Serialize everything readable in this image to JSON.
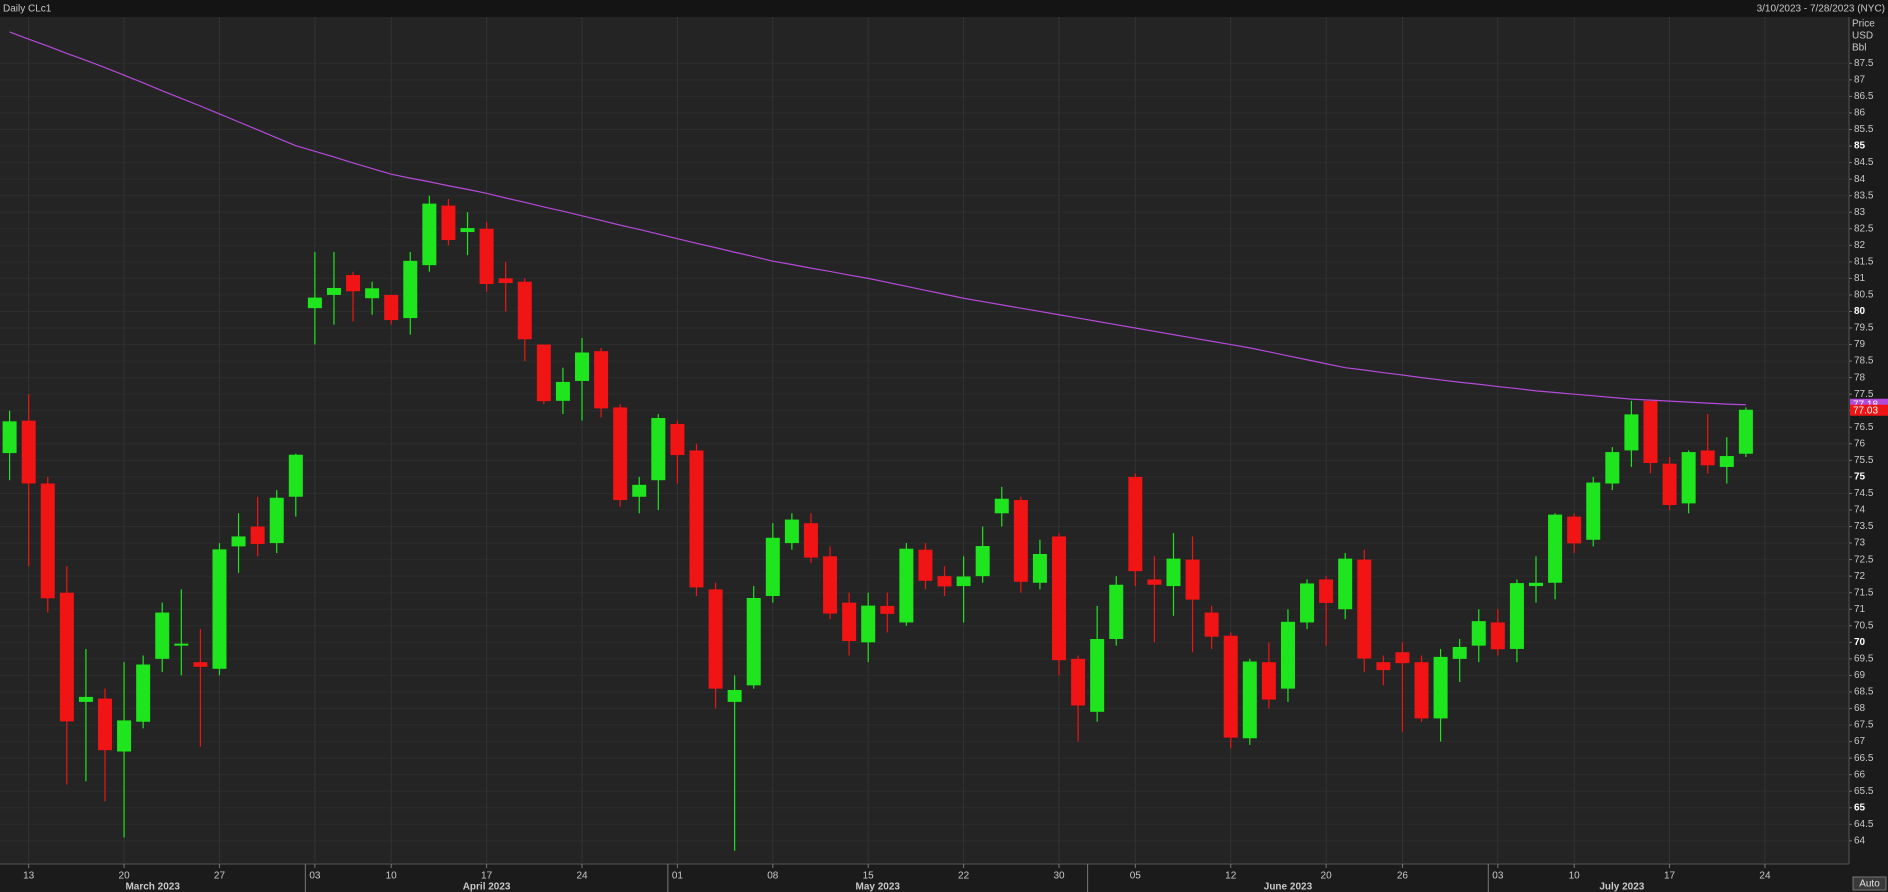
{
  "chart_data": {
    "type": "candlestick",
    "title": "Daily CLc1",
    "subtitle": "3/10/2023 - 7/28/2023 (NYC)",
    "y_axis_title": [
      "Price",
      "USD",
      "Bbl"
    ],
    "button": "Auto",
    "up_color": "#1fe51f",
    "down_color": "#f01414",
    "grid": true,
    "x": [
      "2023-03-10",
      "2023-03-13",
      "2023-03-14",
      "2023-03-15",
      "2023-03-16",
      "2023-03-17",
      "2023-03-20",
      "2023-03-21",
      "2023-03-22",
      "2023-03-23",
      "2023-03-24",
      "2023-03-27",
      "2023-03-28",
      "2023-03-29",
      "2023-03-30",
      "2023-03-31",
      "2023-04-03",
      "2023-04-04",
      "2023-04-05",
      "2023-04-06",
      "2023-04-10",
      "2023-04-11",
      "2023-04-12",
      "2023-04-13",
      "2023-04-14",
      "2023-04-17",
      "2023-04-18",
      "2023-04-19",
      "2023-04-20",
      "2023-04-21",
      "2023-04-24",
      "2023-04-25",
      "2023-04-26",
      "2023-04-27",
      "2023-04-28",
      "2023-05-01",
      "2023-05-02",
      "2023-05-03",
      "2023-05-04",
      "2023-05-05",
      "2023-05-08",
      "2023-05-09",
      "2023-05-10",
      "2023-05-11",
      "2023-05-12",
      "2023-05-15",
      "2023-05-16",
      "2023-05-17",
      "2023-05-18",
      "2023-05-19",
      "2023-05-22",
      "2023-05-23",
      "2023-05-24",
      "2023-05-25",
      "2023-05-26",
      "2023-05-30",
      "2023-05-31",
      "2023-06-01",
      "2023-06-02",
      "2023-06-05",
      "2023-06-06",
      "2023-06-07",
      "2023-06-08",
      "2023-06-09",
      "2023-06-12",
      "2023-06-13",
      "2023-06-14",
      "2023-06-15",
      "2023-06-16",
      "2023-06-20",
      "2023-06-21",
      "2023-06-22",
      "2023-06-23",
      "2023-06-26",
      "2023-06-27",
      "2023-06-28",
      "2023-06-29",
      "2023-06-30",
      "2023-07-03",
      "2023-07-05",
      "2023-07-06",
      "2023-07-07",
      "2023-07-10",
      "2023-07-11",
      "2023-07-12",
      "2023-07-13",
      "2023-07-14",
      "2023-07-17",
      "2023-07-18",
      "2023-07-19",
      "2023-07-20",
      "2023-07-21"
    ],
    "open": [
      75.72,
      76.7,
      74.8,
      71.5,
      68.2,
      68.3,
      66.7,
      67.6,
      69.5,
      69.9,
      69.4,
      69.2,
      72.9,
      73.5,
      73.0,
      74.4,
      80.1,
      80.5,
      81.1,
      80.4,
      80.5,
      79.8,
      81.4,
      83.2,
      82.4,
      82.5,
      81.0,
      80.9,
      79.0,
      77.3,
      77.9,
      78.8,
      77.1,
      74.4,
      74.9,
      76.6,
      75.8,
      71.6,
      68.2,
      68.7,
      71.4,
      73.0,
      73.6,
      72.6,
      71.2,
      70.0,
      71.1,
      70.6,
      72.8,
      72.0,
      71.7,
      72.0,
      73.9,
      74.3,
      71.8,
      73.2,
      69.5,
      67.9,
      70.1,
      75.0,
      71.9,
      71.7,
      72.5,
      70.9,
      70.2,
      67.1,
      69.4,
      68.6,
      70.6,
      71.9,
      71.0,
      72.5,
      69.4,
      69.7,
      69.4,
      67.7,
      69.5,
      69.9,
      70.6,
      69.8,
      71.7,
      71.8,
      73.8,
      73.1,
      74.8,
      75.8,
      77.3,
      75.4,
      74.2,
      75.8,
      75.3,
      75.7
    ],
    "high": [
      77.0,
      77.5,
      75.0,
      72.3,
      69.8,
      68.6,
      69.4,
      69.6,
      71.2,
      71.6,
      70.4,
      73.0,
      73.9,
      74.4,
      74.6,
      75.7,
      81.8,
      81.8,
      81.2,
      80.9,
      80.5,
      81.8,
      83.5,
      83.4,
      83.0,
      82.7,
      81.5,
      81.0,
      79.0,
      78.3,
      79.2,
      78.9,
      77.2,
      75.0,
      76.9,
      76.7,
      76.0,
      71.8,
      69.0,
      71.7,
      73.6,
      73.9,
      73.9,
      72.9,
      71.5,
      71.5,
      71.5,
      73.0,
      73.0,
      72.3,
      72.6,
      73.5,
      74.7,
      74.4,
      73.1,
      73.3,
      69.6,
      71.1,
      72.0,
      75.1,
      72.6,
      73.3,
      73.2,
      71.1,
      70.3,
      69.5,
      70.0,
      71.0,
      71.9,
      72.0,
      72.7,
      72.8,
      69.6,
      70.0,
      69.6,
      69.8,
      70.1,
      71.0,
      71.0,
      71.9,
      72.6,
      73.9,
      73.9,
      75.0,
      75.9,
      77.3,
      77.3,
      75.6,
      75.8,
      76.9,
      76.2,
      77.1
    ],
    "low": [
      74.9,
      72.3,
      70.9,
      65.7,
      65.8,
      65.2,
      64.1,
      67.4,
      69.1,
      69.0,
      66.85,
      69.0,
      72.1,
      72.6,
      72.7,
      73.8,
      79.0,
      79.6,
      79.7,
      79.9,
      79.6,
      79.3,
      81.2,
      82.0,
      81.7,
      80.6,
      80.0,
      78.5,
      77.2,
      76.9,
      76.7,
      76.8,
      74.1,
      73.9,
      74.0,
      74.8,
      71.4,
      68.0,
      63.7,
      68.6,
      71.2,
      72.8,
      72.4,
      70.7,
      69.6,
      69.4,
      70.3,
      70.5,
      71.6,
      71.4,
      70.6,
      71.8,
      73.5,
      71.5,
      71.6,
      69.0,
      67.0,
      67.6,
      69.9,
      71.7,
      70.0,
      70.8,
      69.7,
      69.8,
      66.8,
      66.9,
      68.0,
      68.2,
      70.4,
      69.9,
      70.7,
      69.1,
      68.7,
      67.3,
      67.6,
      67.0,
      68.8,
      69.4,
      69.6,
      69.4,
      71.2,
      71.3,
      72.7,
      72.9,
      74.6,
      75.3,
      75.1,
      74.0,
      73.9,
      75.1,
      74.8,
      75.6
    ],
    "close": [
      76.68,
      74.8,
      71.33,
      67.61,
      68.35,
      66.74,
      67.64,
      69.33,
      70.9,
      69.96,
      69.26,
      72.81,
      73.2,
      72.97,
      74.37,
      75.67,
      80.42,
      80.71,
      80.61,
      80.7,
      79.74,
      81.53,
      83.26,
      82.16,
      82.52,
      80.83,
      80.86,
      79.16,
      77.29,
      77.87,
      78.76,
      77.07,
      74.3,
      74.76,
      76.78,
      75.66,
      71.66,
      68.6,
      68.56,
      71.34,
      73.16,
      73.71,
      72.56,
      70.87,
      70.04,
      71.11,
      70.86,
      72.83,
      71.86,
      71.69,
      71.99,
      72.91,
      74.34,
      71.83,
      72.67,
      69.46,
      68.09,
      70.1,
      71.74,
      72.15,
      71.74,
      72.53,
      71.29,
      70.17,
      67.12,
      69.42,
      68.27,
      70.62,
      71.78,
      71.19,
      72.53,
      69.51,
      69.16,
      69.37,
      67.7,
      69.56,
      69.86,
      70.64,
      69.79,
      71.79,
      71.8,
      73.86,
      72.99,
      74.83,
      75.75,
      76.89,
      75.42,
      74.15,
      75.75,
      75.35,
      75.63,
      77.03
    ],
    "moving_average": {
      "color": "#b44ad8",
      "values": [
        88.45,
        88.23,
        88.02,
        87.8,
        87.59,
        87.37,
        87.14,
        86.91,
        86.67,
        86.44,
        86.21,
        85.97,
        85.73,
        85.49,
        85.25,
        85.01,
        84.84,
        84.67,
        84.49,
        84.32,
        84.15,
        84.03,
        83.92,
        83.8,
        83.69,
        83.57,
        83.43,
        83.3,
        83.16,
        83.03,
        82.89,
        82.75,
        82.61,
        82.48,
        82.34,
        82.2,
        82.06,
        81.93,
        81.79,
        81.66,
        81.52,
        81.42,
        81.31,
        81.21,
        81.1,
        81.0,
        80.88,
        80.76,
        80.64,
        80.52,
        80.4,
        80.3,
        80.2,
        80.1,
        80.0,
        79.9,
        79.8,
        79.7,
        79.6,
        79.5,
        79.4,
        79.3,
        79.2,
        79.1,
        79.0,
        78.9,
        78.78,
        78.66,
        78.54,
        78.42,
        78.3,
        78.23,
        78.15,
        78.08,
        78.0,
        77.93,
        77.86,
        77.8,
        77.73,
        77.67,
        77.6,
        77.55,
        77.5,
        77.45,
        77.4,
        77.35,
        77.32,
        77.29,
        77.26,
        77.23,
        77.2,
        77.18
      ]
    },
    "ylim": [
      63.3,
      88.9
    ],
    "yticks": [
      64,
      64.5,
      65,
      65.5,
      66,
      66.5,
      67,
      67.5,
      68,
      68.5,
      69,
      69.5,
      70,
      70.5,
      71,
      71.5,
      72,
      72.5,
      73,
      73.5,
      74,
      74.5,
      75,
      75.5,
      76,
      76.5,
      77,
      77.5,
      78,
      78.5,
      79,
      79.5,
      80,
      80.5,
      81,
      81.5,
      82,
      82.5,
      83,
      83.5,
      84,
      84.5,
      85,
      85.5,
      86,
      86.5,
      87,
      87.5
    ],
    "xticks": [
      {
        "value": "2023-03-13",
        "label": "13"
      },
      {
        "value": "2023-03-20",
        "label": "20"
      },
      {
        "value": "2023-03-27",
        "label": "27"
      },
      {
        "value": "2023-04-03",
        "label": "03"
      },
      {
        "value": "2023-04-10",
        "label": "10"
      },
      {
        "value": "2023-04-17",
        "label": "17"
      },
      {
        "value": "2023-04-24",
        "label": "24"
      },
      {
        "value": "2023-05-01",
        "label": "01"
      },
      {
        "value": "2023-05-08",
        "label": "08"
      },
      {
        "value": "2023-05-15",
        "label": "15"
      },
      {
        "value": "2023-05-22",
        "label": "22"
      },
      {
        "value": "2023-05-30",
        "label": "30"
      },
      {
        "value": "2023-06-05",
        "label": "05"
      },
      {
        "value": "2023-06-12",
        "label": "12"
      },
      {
        "value": "2023-06-20",
        "label": "20"
      },
      {
        "value": "2023-06-26",
        "label": "26"
      },
      {
        "value": "2023-07-03",
        "label": "03"
      },
      {
        "value": "2023-07-10",
        "label": "10"
      },
      {
        "value": "2023-07-17",
        "label": "17"
      },
      {
        "value": "2023-07-24",
        "label": "24"
      }
    ],
    "month_labels": [
      {
        "value": "2023-03",
        "label": "March 2023"
      },
      {
        "value": "2023-04",
        "label": "April 2023"
      },
      {
        "value": "2023-05",
        "label": "May 2023"
      },
      {
        "value": "2023-06",
        "label": "June 2023"
      },
      {
        "value": "2023-07",
        "label": "July 2023"
      }
    ]
  }
}
